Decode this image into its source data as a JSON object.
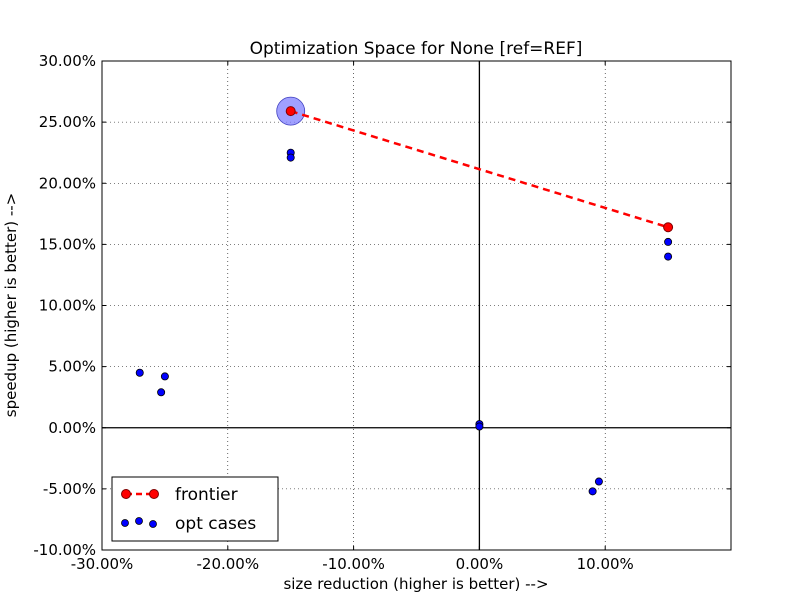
{
  "chart_data": {
    "type": "scatter",
    "title": "Optimization Space for None [ref=REF]",
    "xlabel": "size reduction (higher is better) -->",
    "ylabel": "speedup (higher is better) -->",
    "xlim": [
      -30,
      20
    ],
    "ylim": [
      -10,
      30
    ],
    "x_ticks": [
      -30,
      -20,
      -10,
      0,
      10
    ],
    "x_tick_labels": [
      "-30.00%",
      "-20.00%",
      "-10.00%",
      "0.00%",
      "10.00%"
    ],
    "y_ticks": [
      -10,
      -5,
      0,
      5,
      10,
      15,
      20,
      25,
      30
    ],
    "y_tick_labels": [
      "-10.00%",
      "-5.00%",
      "0.00%",
      "5.00%",
      "10.00%",
      "15.00%",
      "20.00%",
      "25.00%",
      "30.00%"
    ],
    "grid": true,
    "legend_position": "lower-left",
    "series": [
      {
        "name": "frontier",
        "style": "dashed-line-with-markers",
        "color": "#ff0000",
        "points": [
          [
            -15.0,
            25.9
          ],
          [
            15.0,
            16.4
          ]
        ]
      },
      {
        "name": "opt cases",
        "style": "markers",
        "color": "#0000ff",
        "points": [
          [
            -15.0,
            25.9
          ],
          [
            -15.0,
            22.5
          ],
          [
            -15.0,
            22.1
          ],
          [
            15.0,
            16.4
          ],
          [
            15.0,
            15.2
          ],
          [
            15.0,
            14.0
          ],
          [
            -27.0,
            4.5
          ],
          [
            -25.0,
            4.2
          ],
          [
            -25.3,
            2.9
          ],
          [
            0.0,
            0.3
          ],
          [
            0.0,
            0.1
          ],
          [
            9.5,
            -4.4
          ],
          [
            9.0,
            -5.2
          ]
        ]
      }
    ],
    "highlight": {
      "point": [
        -15.0,
        25.9
      ],
      "color": "#8080ff"
    }
  }
}
